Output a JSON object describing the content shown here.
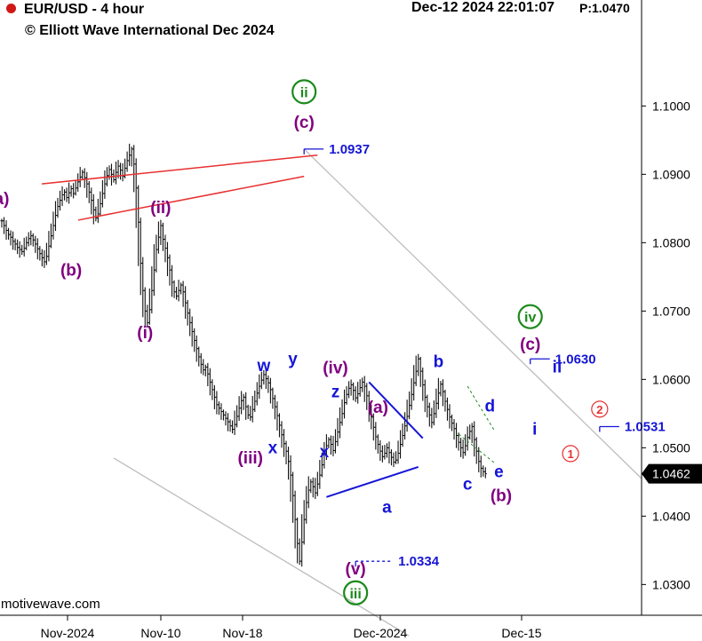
{
  "header": {
    "symbol_timeframe": "EUR/USD - 4 hour",
    "copyright": "© Elliott Wave International Dec 2024",
    "datetime": "Dec-12 2024  22:01:07",
    "price_tag": "P:1.0470",
    "watermark": "motivewave.com"
  },
  "colors": {
    "purple": "#800080",
    "green": "#1a8a1a",
    "blue": "#1515d6",
    "red": "#e83030",
    "price_tag_bg": "#000000",
    "channel": "#bdbdbd"
  },
  "chart_data": {
    "type": "line",
    "title": "EUR/USD - 4 hour",
    "ylim": [
      1.0255,
      1.1155
    ],
    "y_ticks": [
      "1.1000",
      "1.0900",
      "1.0800",
      "1.0700",
      "1.0600",
      "1.0500",
      "1.0400",
      "1.0300"
    ],
    "x_ticks": [
      "Nov-2024",
      "Nov-10",
      "Nov-18",
      "Dec-2024",
      "Dec-15"
    ],
    "last_price": "1.0462",
    "series": [
      {
        "values": [
          1.0832,
          1.0825,
          1.0818,
          1.0812,
          1.0808,
          1.0802,
          1.0798,
          1.0793,
          1.079,
          1.0787,
          1.0792,
          1.08,
          1.0806,
          1.081,
          1.0804,
          1.0798,
          1.0791,
          1.0784,
          1.0778,
          1.0772,
          1.078,
          1.0795,
          1.081,
          1.0825,
          1.084,
          1.0853,
          1.0862,
          1.087,
          1.0874,
          1.0866,
          1.0873,
          1.0879,
          1.0872,
          1.088,
          1.0889,
          1.0896,
          1.0903,
          1.0895,
          1.0886,
          1.0874,
          1.0862,
          1.0848,
          1.0836,
          1.0842,
          1.0857,
          1.0872,
          1.0886,
          1.0898,
          1.0907,
          1.09,
          1.0892,
          1.0903,
          1.0912,
          1.0906,
          1.0897,
          1.0909,
          1.092,
          1.0928,
          1.0937,
          1.0915,
          1.088,
          1.083,
          1.077,
          1.073,
          1.07,
          1.0683,
          1.0702,
          1.073,
          1.076,
          1.079,
          1.0808,
          1.0825,
          1.0805,
          1.0792,
          1.0778,
          1.076,
          1.0742,
          1.0728,
          1.0722,
          1.073,
          1.0738,
          1.0728,
          1.0712,
          1.0697,
          1.0683,
          1.067,
          1.0657,
          1.0645,
          1.0633,
          1.0622,
          1.0614,
          1.0618,
          1.0608,
          1.0596,
          1.0585,
          1.0574,
          1.0563,
          1.0558,
          1.0553,
          1.0548,
          1.0543,
          1.0538,
          1.0532,
          1.0527,
          1.0534,
          1.0546,
          1.0558,
          1.0569,
          1.0574,
          1.056,
          1.0548,
          1.0545,
          1.0556,
          1.0568,
          1.058,
          1.059,
          1.0599,
          1.0607,
          1.0601,
          1.0595,
          1.0585,
          1.0572,
          1.056,
          1.0547,
          1.0533,
          1.0519,
          1.0506,
          1.0495,
          1.048,
          1.046,
          1.043,
          1.0395,
          1.036,
          1.0334,
          1.0362,
          1.0395,
          1.042,
          1.0438,
          1.045,
          1.0443,
          1.0434,
          1.0447,
          1.046,
          1.0475,
          1.049,
          1.0503,
          1.0512,
          1.0505,
          1.0496,
          1.0509,
          1.0523,
          1.0537,
          1.055,
          1.0566,
          1.0578,
          1.0587,
          1.0592,
          1.0584,
          1.0573,
          1.0579,
          1.0588,
          1.0596,
          1.059,
          1.0576,
          1.056,
          1.0545,
          1.053,
          1.0516,
          1.0505,
          1.0495,
          1.0487,
          1.0492,
          1.05,
          1.0493,
          1.0486,
          1.0479,
          1.0482,
          1.0492,
          1.0505,
          1.0518,
          1.0532,
          1.0546,
          1.0562,
          1.0578,
          1.0595,
          1.0612,
          1.063,
          1.0612,
          1.0592,
          1.0574,
          1.056,
          1.0548,
          1.0537,
          1.055,
          1.0565,
          1.058,
          1.0593,
          1.0582,
          1.0568,
          1.0556,
          1.0545,
          1.0536,
          1.0528,
          1.0518,
          1.0508,
          1.05,
          1.0493,
          1.0503,
          1.0515,
          1.0524,
          1.0531,
          1.0512,
          1.0495,
          1.048,
          1.047,
          1.0465,
          1.0462
        ]
      }
    ],
    "annotations": [
      {
        "text": "ii",
        "style": "circled",
        "color": "green",
        "x": 135,
        "y": 1.1013
      },
      {
        "text": "(c)",
        "color": "purple",
        "x": 135,
        "y": 1.0968
      },
      {
        "text": "a)",
        "color": "purple",
        "x": 0,
        "y": 1.0856
      },
      {
        "text": "(b)",
        "color": "purple",
        "x": 31,
        "y": 1.0752
      },
      {
        "text": "(ii)",
        "color": "purple",
        "x": 71,
        "y": 1.0843
      },
      {
        "text": "(i)",
        "color": "purple",
        "x": 64,
        "y": 1.066
      },
      {
        "text": "w",
        "color": "blue",
        "x": 117,
        "y": 1.0612
      },
      {
        "text": "y",
        "color": "blue",
        "x": 130,
        "y": 1.0622
      },
      {
        "text": "(iv)",
        "color": "purple",
        "x": 149,
        "y": 1.0609
      },
      {
        "text": "z",
        "color": "blue",
        "x": 149,
        "y": 1.0574
      },
      {
        "text": "(iii)",
        "color": "purple",
        "x": 111,
        "y": 1.0477
      },
      {
        "text": "x",
        "color": "blue",
        "x": 121,
        "y": 1.0492
      },
      {
        "text": "x",
        "color": "blue",
        "x": 144,
        "y": 1.0486
      },
      {
        "text": "(a)",
        "color": "purple",
        "x": 168,
        "y": 1.0551
      },
      {
        "text": "b",
        "color": "blue",
        "x": 195,
        "y": 1.0618
      },
      {
        "text": "d",
        "color": "blue",
        "x": 218,
        "y": 1.0553
      },
      {
        "text": "a",
        "color": "blue",
        "x": 172,
        "y": 1.0405
      },
      {
        "text": "c",
        "color": "blue",
        "x": 208,
        "y": 1.0439
      },
      {
        "text": "e",
        "color": "blue",
        "x": 222,
        "y": 1.0457
      },
      {
        "text": "(b)",
        "color": "purple",
        "x": 223,
        "y": 1.0422
      },
      {
        "text": "iv",
        "style": "circled",
        "color": "green",
        "x": 236,
        "y": 1.0684
      },
      {
        "text": "(c)",
        "color": "purple",
        "x": 236,
        "y": 1.0643
      },
      {
        "text": "ii",
        "color": "blue",
        "x": 248,
        "y": 1.061
      },
      {
        "text": "i",
        "color": "blue",
        "x": 238,
        "y": 1.0519
      },
      {
        "text": "2",
        "style": "circled-outline",
        "color": "red",
        "x": 267,
        "y": 1.055
      },
      {
        "text": "1",
        "style": "circled-outline",
        "color": "red",
        "x": 254,
        "y": 1.0485
      },
      {
        "text": "(v)",
        "color": "purple",
        "x": 158,
        "y": 1.0315
      },
      {
        "text": "iii",
        "style": "circled",
        "color": "green",
        "x": 158,
        "y": 1.028
      }
    ],
    "price_levels": [
      {
        "label": "1.0937",
        "x": 135,
        "value": 1.0937
      },
      {
        "label": "1.0630",
        "x": 236,
        "value": 1.063
      },
      {
        "label": "1.0531",
        "x": 267,
        "value": 1.0531
      },
      {
        "label": "1.0334",
        "x": 158,
        "value": 1.0334,
        "dashed": true
      }
    ]
  }
}
